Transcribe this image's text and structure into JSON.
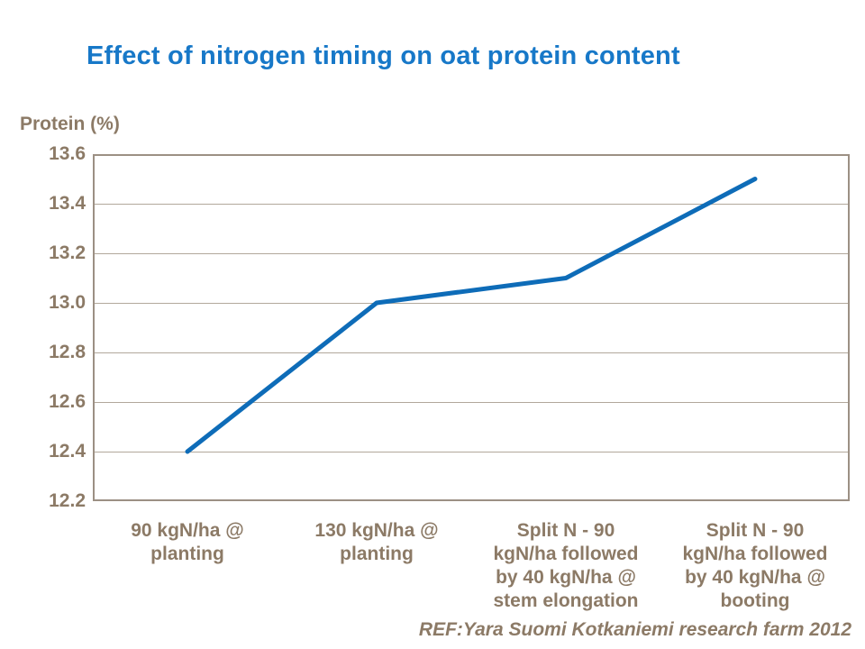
{
  "header": {
    "title": "Effect of nitrogen timing on oat protein content"
  },
  "chart_data": {
    "type": "line",
    "title": "Effect of nitrogen timing on oat protein content",
    "ylabel": "Protein (%)",
    "xlabel": "",
    "categories": [
      "90 kgN/ha @ planting",
      "130 kgN/ha @ planting",
      "Split N - 90 kgN/ha followed by 40 kgN/ha @ stem elongation",
      "Split N - 90 kgN/ha followed by 40 kgN/ha @ booting"
    ],
    "values": [
      12.4,
      13.0,
      13.1,
      13.5
    ],
    "ylim": [
      12.2,
      13.6
    ],
    "ytick_step": 0.2,
    "ytick_labels": [
      "13.6",
      "13.4",
      "13.2",
      "13.0",
      "12.8",
      "12.6",
      "12.4",
      "12.2"
    ],
    "grid": true,
    "legend": false,
    "line_width": 5
  },
  "footer": {
    "reference": "REF:Yara Suomi Kotkaniemi research farm 2012"
  },
  "colors": {
    "title_blue": "#1778C8",
    "line_blue": "#0E6CB8",
    "axis_text_brown": "#8C7A66",
    "plot_border": "#9C9084",
    "gridline": "#B2A89B",
    "background": "#FFFFFF"
  }
}
